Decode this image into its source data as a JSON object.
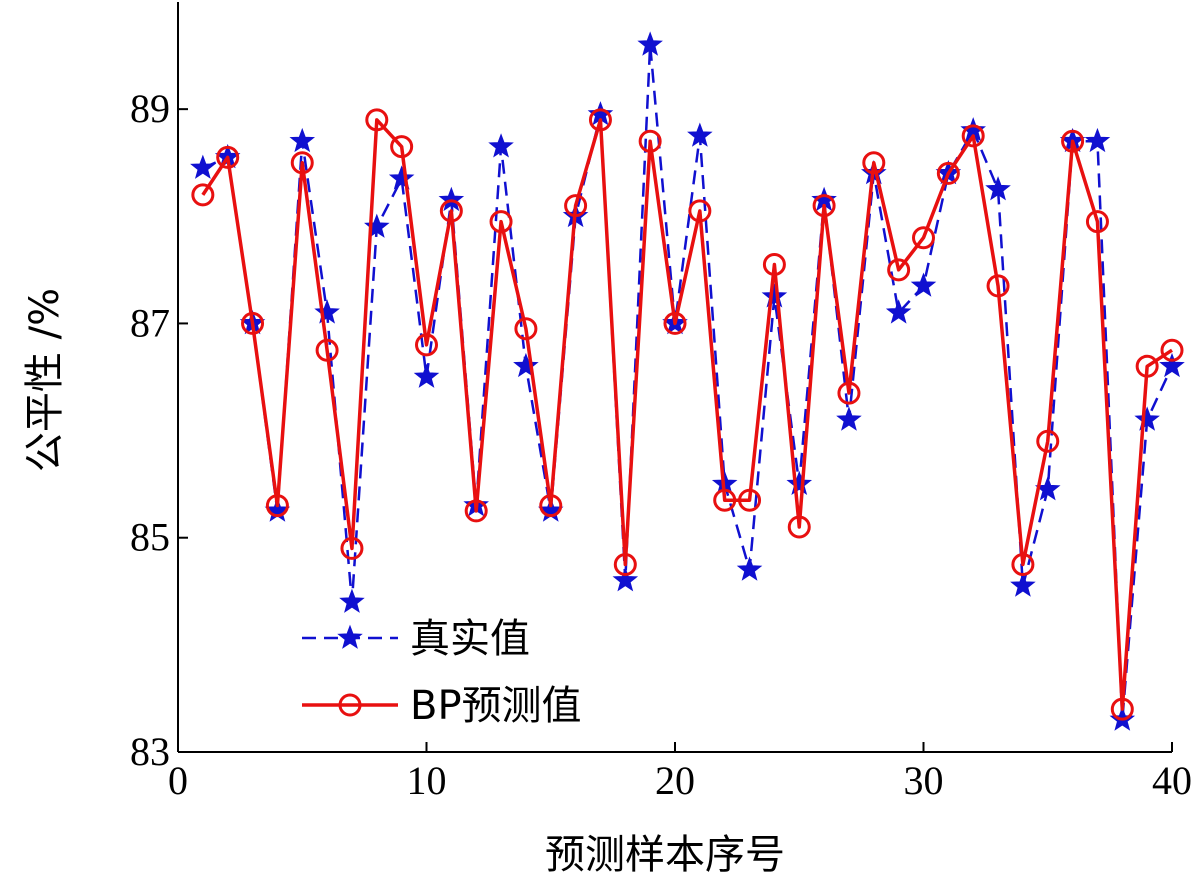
{
  "chart_data": {
    "type": "line",
    "xlabel": "预测样本序号",
    "ylabel": "公平性 /%",
    "xlim": [
      0,
      40
    ],
    "ylim": [
      83,
      90
    ],
    "xticks": [
      0,
      10,
      20,
      30,
      40
    ],
    "xtick_labels": [
      "0",
      "10",
      "20",
      "30",
      "40"
    ],
    "yticks": [
      83,
      85,
      87,
      89
    ],
    "ytick_labels": [
      "83",
      "85",
      "87",
      "89"
    ],
    "grid": false,
    "legend_position": "bottom-left",
    "x": [
      1,
      2,
      3,
      4,
      5,
      6,
      7,
      8,
      9,
      10,
      11,
      12,
      13,
      14,
      15,
      16,
      17,
      18,
      19,
      20,
      21,
      22,
      23,
      24,
      25,
      26,
      27,
      28,
      29,
      30,
      31,
      32,
      33,
      34,
      35,
      36,
      37,
      38,
      39,
      40
    ],
    "series": [
      {
        "name": "真实值",
        "color": "#1010d0",
        "line_style": "dashed",
        "marker": "star",
        "values": [
          88.45,
          88.55,
          87.0,
          85.25,
          88.7,
          87.1,
          84.4,
          87.9,
          88.35,
          86.5,
          88.15,
          85.3,
          88.65,
          86.6,
          85.25,
          88.0,
          88.95,
          84.6,
          89.6,
          87.0,
          88.75,
          85.5,
          84.7,
          87.25,
          85.5,
          88.15,
          86.1,
          88.4,
          87.1,
          87.35,
          88.4,
          88.8,
          88.25,
          84.55,
          85.45,
          88.7,
          88.7,
          83.3,
          86.1,
          86.6
        ]
      },
      {
        "name": "BP预测值",
        "color": "#e81010",
        "line_style": "solid",
        "marker": "circle",
        "values": [
          88.2,
          88.55,
          87.0,
          85.3,
          88.5,
          86.75,
          84.9,
          88.9,
          88.65,
          86.8,
          88.05,
          85.25,
          87.95,
          86.95,
          85.3,
          88.1,
          88.9,
          84.75,
          88.7,
          87.0,
          88.05,
          85.35,
          85.35,
          87.55,
          85.1,
          88.1,
          86.35,
          88.5,
          87.5,
          87.8,
          88.4,
          88.75,
          87.35,
          84.75,
          85.9,
          88.7,
          87.95,
          83.4,
          86.6,
          86.75
        ]
      }
    ]
  }
}
